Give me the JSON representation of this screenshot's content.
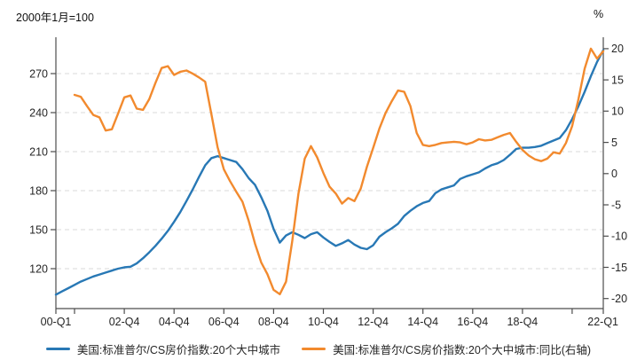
{
  "header": {
    "left_unit": "2000年1月=100",
    "right_unit": "%"
  },
  "chart_data": {
    "type": "line",
    "x_start": "2000-Q1",
    "x_end": "2022-Q1",
    "x_frequency": "quarterly",
    "x_quarter_count": 88,
    "grid": "dashed-horizontal",
    "legend_position": "bottom",
    "x_ticks": [
      {
        "label": "00-Q1",
        "q": 0
      },
      {
        "label": "",
        "q": 3
      },
      {
        "label": "02-Q4",
        "q": 11
      },
      {
        "label": "04-Q4",
        "q": 19
      },
      {
        "label": "06-Q4",
        "q": 27
      },
      {
        "label": "08-Q4",
        "q": 35
      },
      {
        "label": "10-Q4",
        "q": 43
      },
      {
        "label": "12-Q4",
        "q": 51
      },
      {
        "label": "14-Q4",
        "q": 59
      },
      {
        "label": "16-Q4",
        "q": 67
      },
      {
        "label": "18-Q4",
        "q": 75
      },
      {
        "label": "",
        "q": 83
      },
      {
        "label": "22-Q1",
        "q": 88
      }
    ],
    "left_axis": {
      "min": 89.3,
      "max": 295.9,
      "ticks": [
        120,
        150,
        180,
        210,
        240,
        270
      ]
    },
    "right_axis": {
      "min": -21.6,
      "max": 21.4,
      "ticks": [
        20,
        15,
        10,
        5,
        0,
        -5,
        -10,
        -15,
        -20
      ]
    },
    "series": [
      {
        "name": "美国:标准普尔/CS房价指数:20个大中城市",
        "axis": "left",
        "color": "#2878B5",
        "start_q": 0,
        "values": [
          100,
          102.5,
          105,
          107.5,
          110,
          112,
          114,
          115.5,
          117,
          118.5,
          120,
          121,
          121.5,
          124,
          128,
          132.5,
          137.5,
          143,
          149,
          156,
          163.5,
          172,
          181,
          190.5,
          199.5,
          205,
          206.5,
          205,
          203.5,
          202,
          196.5,
          189.5,
          184.5,
          175,
          164.5,
          150.5,
          140,
          145.5,
          148,
          146,
          143.5,
          146.5,
          148,
          144,
          140.5,
          137.5,
          139.5,
          142,
          138.5,
          136,
          135,
          138,
          144.5,
          148,
          151,
          154.5,
          160.5,
          164.5,
          168,
          170.5,
          172,
          178,
          181,
          182.5,
          184,
          189,
          191,
          192.5,
          194,
          197,
          199.5,
          201,
          203.5,
          207.5,
          212,
          213,
          213,
          213.5,
          214.5,
          216.5,
          218.5,
          220.5,
          226.5,
          235,
          245,
          256,
          268,
          279,
          288
        ]
      },
      {
        "name": "美国:标准普尔/CS房价指数:20个大中城市:同比(右轴)",
        "axis": "right",
        "color": "#F28A2E",
        "start_q": 3,
        "values": [
          12.6,
          12.3,
          10.8,
          9.4,
          9.0,
          6.9,
          7.1,
          9.6,
          12.2,
          12.5,
          10.4,
          10.2,
          11.9,
          14.5,
          16.9,
          17.2,
          15.8,
          16.3,
          16.5,
          16.0,
          15.4,
          14.7,
          9.5,
          4.2,
          0.7,
          -1.2,
          -2.9,
          -4.5,
          -7.6,
          -11.2,
          -14.2,
          -16.1,
          -18.6,
          -19.3,
          -17.3,
          -10.8,
          -3.2,
          2.4,
          4.4,
          2.6,
          0.1,
          -2.1,
          -3.2,
          -4.8,
          -3.9,
          -4.4,
          -2.4,
          1.1,
          4.1,
          7.2,
          9.7,
          11.6,
          13.3,
          13.1,
          10.8,
          6.5,
          4.6,
          4.4,
          4.6,
          4.9,
          5.0,
          5.1,
          5.0,
          4.7,
          5.0,
          5.5,
          5.3,
          5.4,
          5.8,
          6.2,
          6.5,
          5.1,
          3.8,
          2.9,
          2.3,
          2.0,
          2.4,
          3.4,
          3.2,
          4.9,
          7.6,
          11.9,
          16.8,
          20.0,
          18.4,
          19.6
        ]
      }
    ]
  },
  "legend": {
    "items": [
      {
        "label": "美国:标准普尔/CS房价指数:20个大中城市",
        "color": "#2878B5"
      },
      {
        "label": "美国:标准普尔/CS房价指数:20个大中城市:同比(右轴)",
        "color": "#F28A2E"
      }
    ]
  },
  "style": {
    "axis_color": "#4d4d4d",
    "grid_color": "#d9d9d9",
    "tick_text_color": "#262626"
  }
}
